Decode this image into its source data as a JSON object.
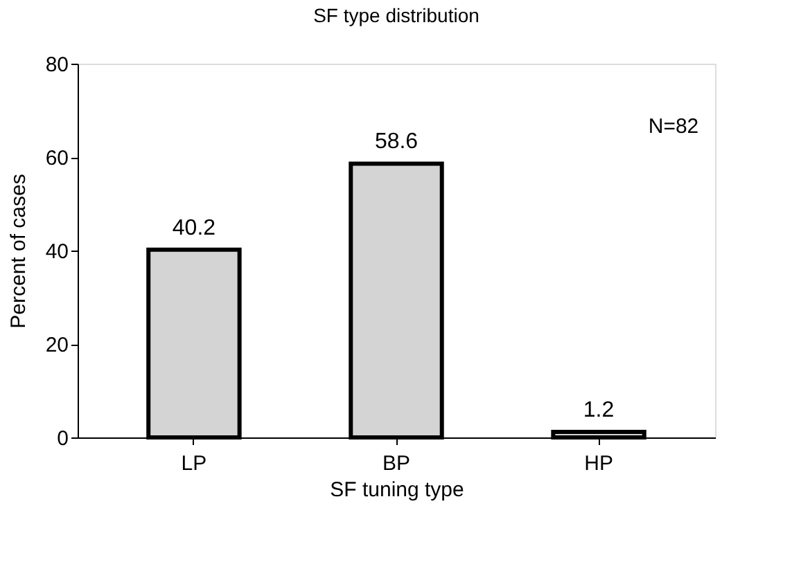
{
  "chart_data": {
    "type": "bar",
    "title": "SF type distribution",
    "xlabel": "SF tuning type",
    "ylabel": "Percent of cases",
    "categories": [
      "LP",
      "BP",
      "HP"
    ],
    "values": [
      40.2,
      58.6,
      1.2
    ],
    "color": "#d4d4d4",
    "ylim": [
      0,
      80
    ],
    "yticks": [
      0,
      20,
      40,
      60,
      80
    ],
    "grid": false,
    "data_labels": true,
    "annotations": [
      "N=82"
    ]
  }
}
